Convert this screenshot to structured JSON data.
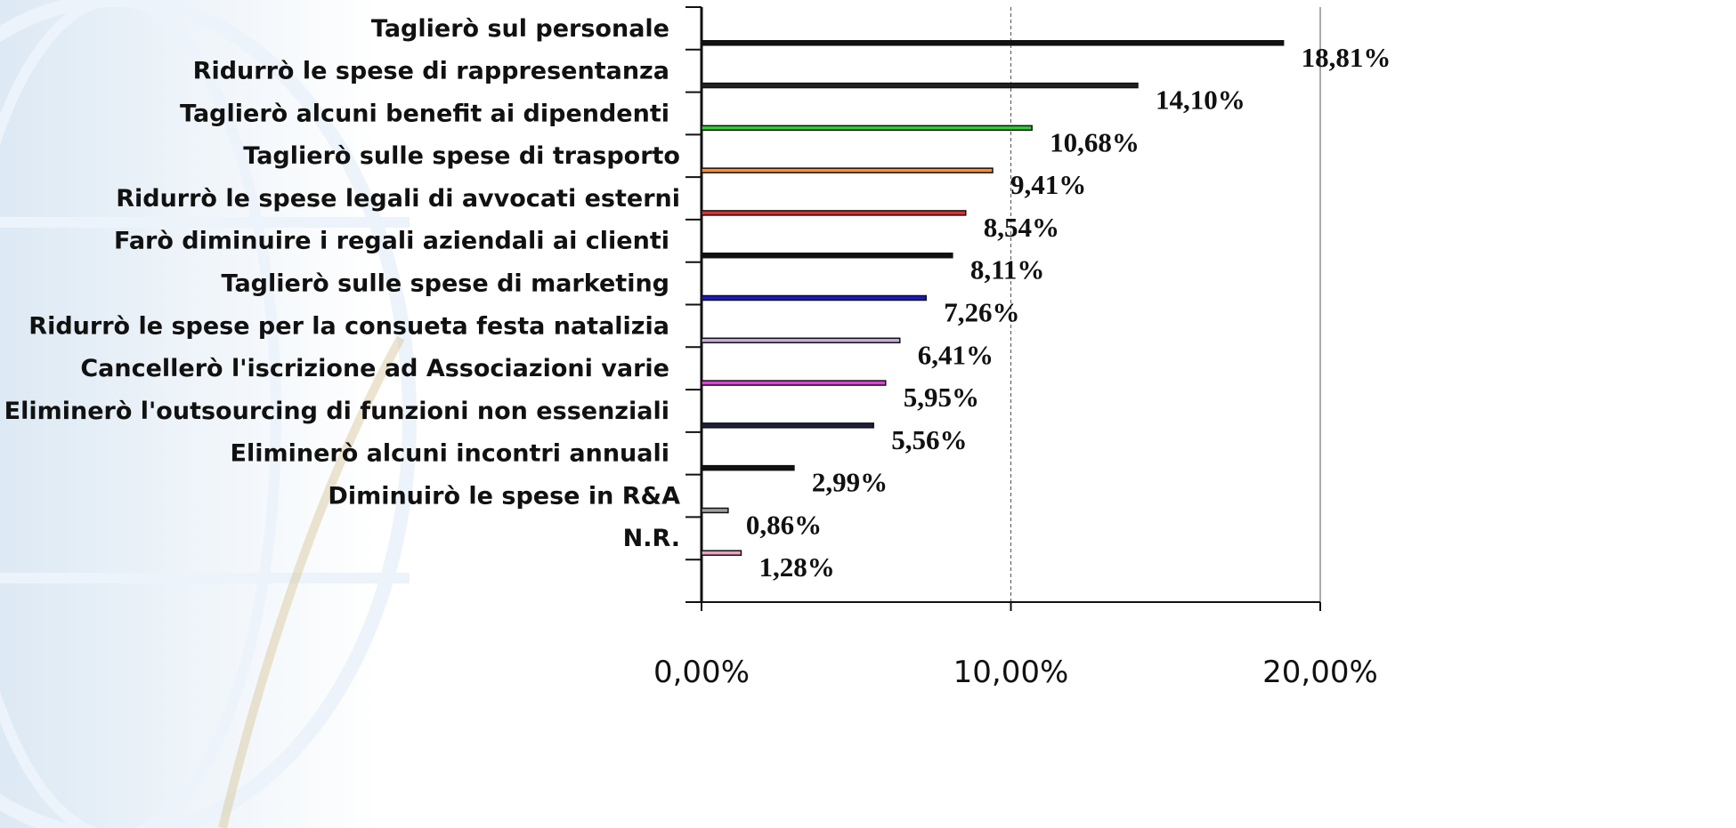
{
  "chart_data": {
    "type": "bar",
    "orientation": "horizontal",
    "categories": [
      "Taglierò sul personale",
      "Ridurrò le spese di rappresentanza",
      "Taglierò alcuni benefit ai dipendenti",
      "Taglierò sulle spese di trasporto",
      "Ridurrò le spese legali di avvocati esterni",
      "Farò diminuire i regali aziendali ai clienti",
      "Taglierò sulle spese di marketing",
      "Ridurrò le spese per la consueta festa natalizia",
      "Cancellerò l'iscrizione ad Associazioni varie",
      "Eliminerò l'outsourcing di funzioni non essenziali",
      "Eliminerò alcuni incontri annuali",
      "Diminuirò le spese in R&A",
      "N.R."
    ],
    "values": [
      18.81,
      14.1,
      10.68,
      9.41,
      8.54,
      8.11,
      7.26,
      6.41,
      5.95,
      5.56,
      2.99,
      0.86,
      1.28
    ],
    "value_labels": [
      "18,81%",
      "14,10%",
      "10,68%",
      "9,41%",
      "8,54%",
      "8,11%",
      "7,26%",
      "6,41%",
      "5,95%",
      "5,56%",
      "2,99%",
      "0,86%",
      "1,28%"
    ],
    "colors": [
      "#111111",
      "#222222",
      "#33cc33",
      "#ff8c33",
      "#e03030",
      "#111111",
      "#1a1acc",
      "#c8a8e0",
      "#e040e0",
      "#202040",
      "#111111",
      "#a0a0a0",
      "#f0a0c0"
    ],
    "xlim": [
      0,
      20
    ],
    "xticks": [
      {
        "value": 0,
        "label": "0,00%"
      },
      {
        "value": 10,
        "label": "10,00%"
      },
      {
        "value": 20,
        "label": "20,00%"
      }
    ],
    "grid": true
  }
}
